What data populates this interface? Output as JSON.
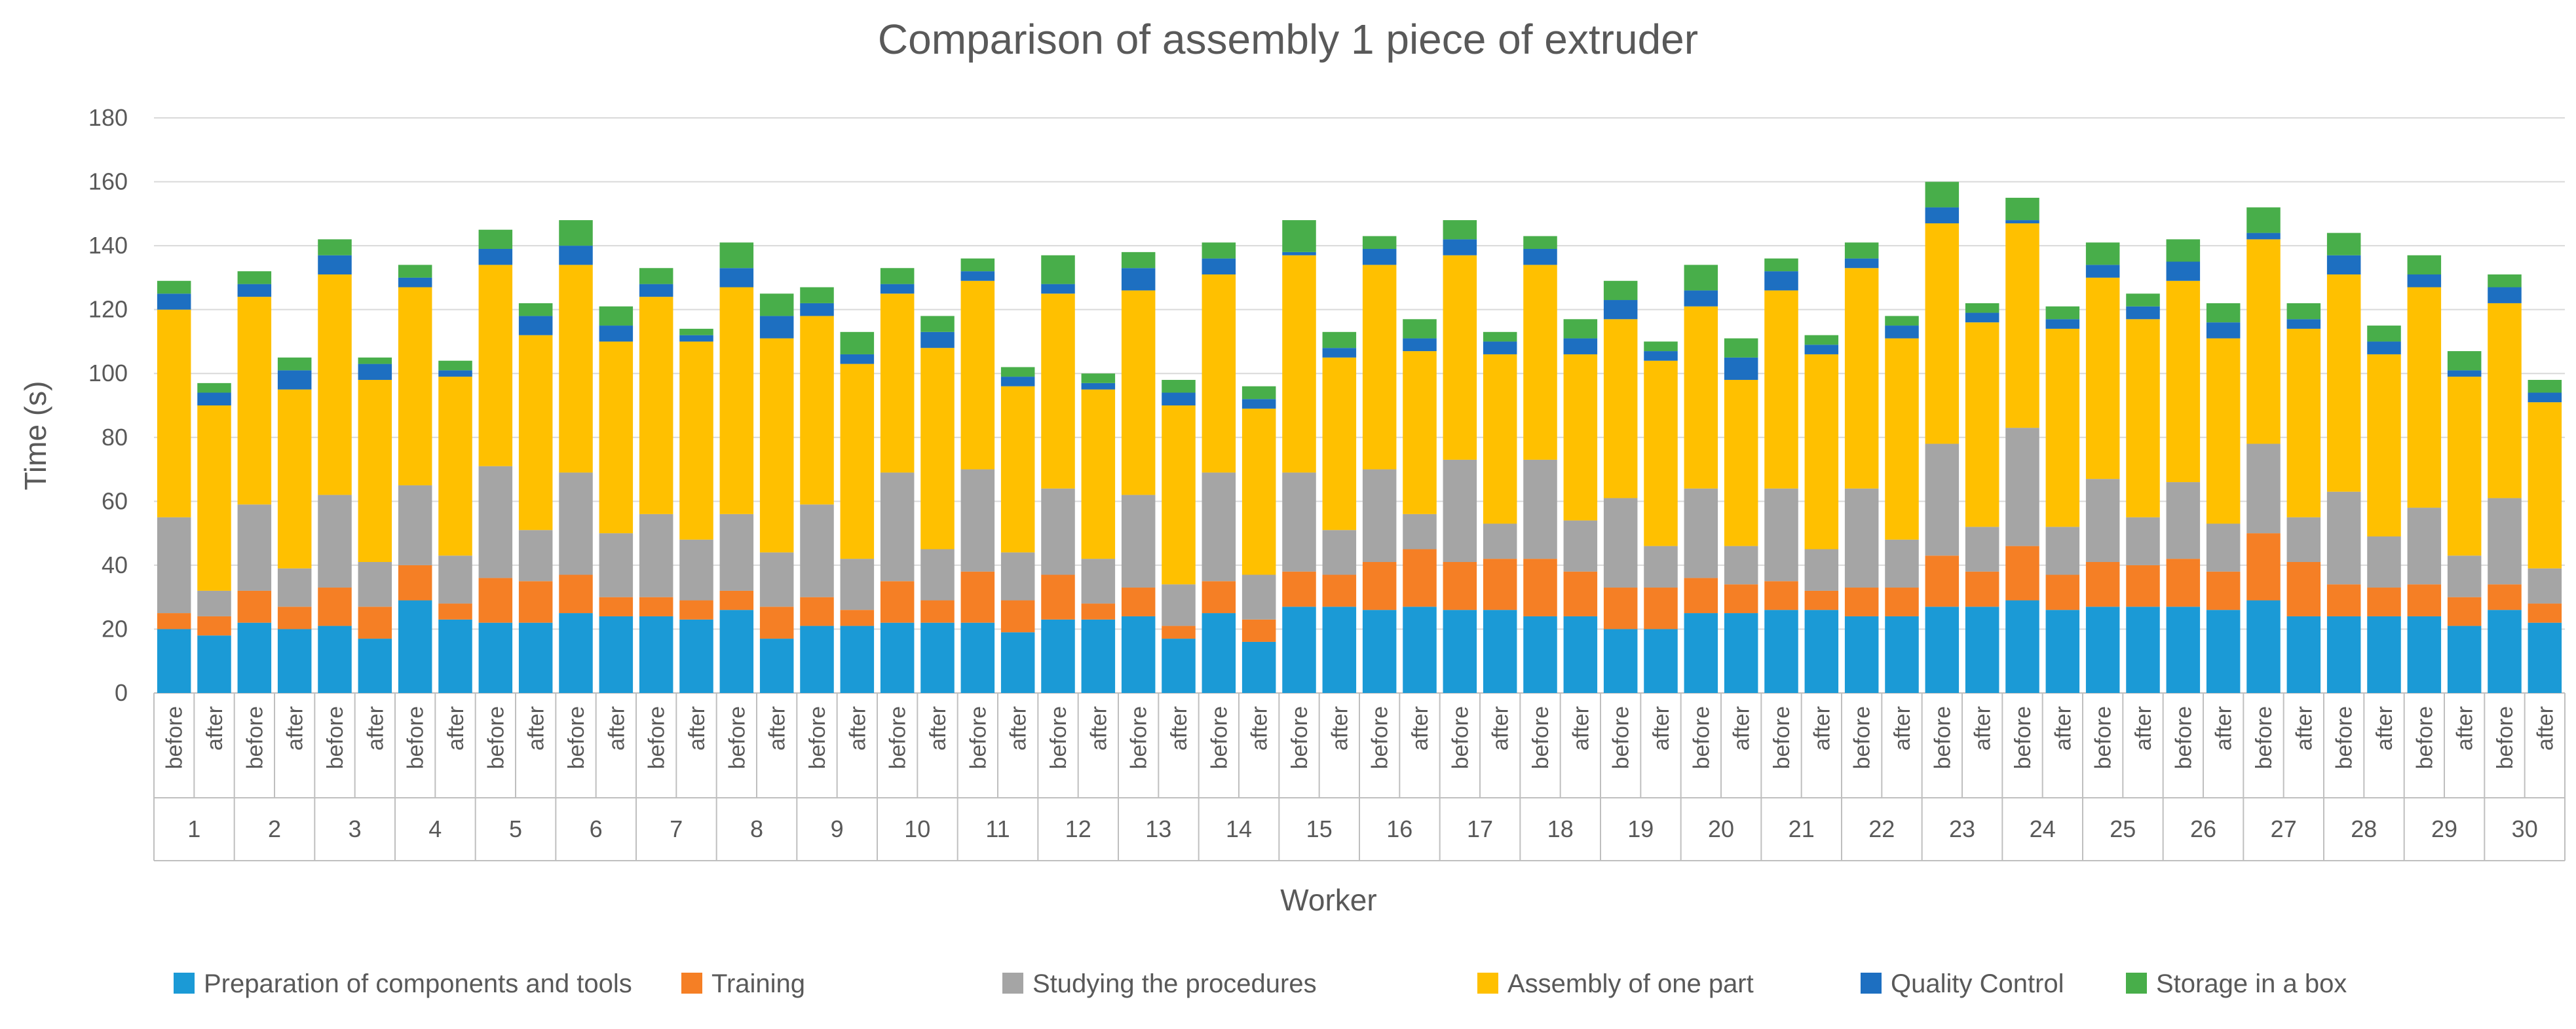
{
  "chart_data": {
    "type": "bar",
    "stacked": true,
    "title": "Comparison of assembly 1 piece of extruder",
    "xlabel": "Worker",
    "ylabel": "Time (s)",
    "ylim": [
      0,
      180
    ],
    "yticks": [
      0,
      20,
      40,
      60,
      80,
      100,
      120,
      140,
      160,
      180
    ],
    "conditions": [
      "before",
      "after"
    ],
    "workers": [
      "1",
      "2",
      "3",
      "4",
      "5",
      "6",
      "7",
      "8",
      "9",
      "10",
      "11",
      "12",
      "13",
      "14",
      "15",
      "16",
      "17",
      "18",
      "19",
      "20",
      "21",
      "22",
      "23",
      "24",
      "25",
      "26",
      "27",
      "28",
      "29",
      "30"
    ],
    "legend_position": "bottom",
    "series": [
      {
        "name": "Preparation of components and tools",
        "color": "#1b9ad6",
        "values": [
          20,
          18,
          22,
          20,
          21,
          17,
          29,
          23,
          22,
          22,
          25,
          24,
          24,
          23,
          26,
          17,
          21,
          21,
          22,
          22,
          22,
          19,
          23,
          23,
          24,
          17,
          25,
          16,
          27,
          27,
          26,
          27,
          26,
          26,
          24,
          24,
          20,
          20,
          25,
          25,
          26,
          26,
          24,
          24,
          27,
          27,
          29,
          26,
          27,
          27,
          27,
          26,
          29,
          24,
          24,
          24,
          24,
          21,
          26,
          22
        ]
      },
      {
        "name": "Training",
        "color": "#f57f25",
        "values": [
          5,
          6,
          10,
          7,
          12,
          10,
          11,
          5,
          14,
          13,
          12,
          6,
          6,
          6,
          6,
          10,
          9,
          5,
          13,
          7,
          16,
          10,
          14,
          5,
          9,
          4,
          10,
          7,
          11,
          10,
          15,
          18,
          15,
          16,
          18,
          14,
          13,
          13,
          11,
          9,
          9,
          6,
          9,
          9,
          16,
          11,
          17,
          11,
          14,
          13,
          15,
          12,
          21,
          17,
          10,
          9,
          10,
          9,
          8,
          6
        ]
      },
      {
        "name": "Studying the procedures",
        "color": "#a5a5a5",
        "values": [
          30,
          8,
          27,
          12,
          29,
          14,
          25,
          15,
          35,
          16,
          32,
          20,
          26,
          19,
          24,
          17,
          29,
          16,
          34,
          16,
          32,
          15,
          27,
          14,
          29,
          13,
          34,
          14,
          31,
          14,
          29,
          11,
          32,
          11,
          31,
          16,
          28,
          13,
          28,
          12,
          29,
          13,
          31,
          15,
          35,
          14,
          37,
          15,
          26,
          15,
          24,
          15,
          28,
          14,
          29,
          16,
          24,
          13,
          27,
          11
        ]
      },
      {
        "name": "Assembly of one part",
        "color": "#ffc000",
        "values": [
          65,
          58,
          65,
          56,
          69,
          57,
          62,
          56,
          63,
          61,
          65,
          60,
          68,
          62,
          71,
          67,
          59,
          61,
          56,
          63,
          59,
          52,
          61,
          53,
          64,
          56,
          62,
          52,
          68,
          54,
          64,
          51,
          64,
          53,
          61,
          52,
          56,
          58,
          57,
          52,
          62,
          61,
          69,
          63,
          69,
          64,
          64,
          62,
          63,
          62,
          63,
          58,
          64,
          59,
          68,
          57,
          69,
          56,
          61,
          52
        ]
      },
      {
        "name": "Quality Control",
        "color": "#1d6fc1",
        "values": [
          5,
          4,
          4,
          6,
          6,
          5,
          3,
          2,
          5,
          6,
          6,
          5,
          4,
          2,
          6,
          7,
          4,
          3,
          3,
          5,
          3,
          3,
          3,
          2,
          7,
          4,
          5,
          3,
          1,
          3,
          5,
          4,
          5,
          4,
          5,
          5,
          6,
          3,
          5,
          7,
          6,
          3,
          3,
          4,
          5,
          3,
          1,
          3,
          4,
          4,
          6,
          5,
          2,
          3,
          6,
          4,
          4,
          2,
          5,
          3
        ]
      },
      {
        "name": "Storage in a box",
        "color": "#48ae4a",
        "values": [
          4,
          3,
          4,
          4,
          5,
          2,
          4,
          3,
          6,
          4,
          8,
          6,
          5,
          2,
          8,
          7,
          5,
          7,
          5,
          5,
          4,
          3,
          9,
          3,
          5,
          4,
          5,
          4,
          10,
          5,
          4,
          6,
          6,
          3,
          4,
          6,
          6,
          3,
          8,
          6,
          4,
          3,
          5,
          3,
          8,
          3,
          7,
          4,
          7,
          4,
          7,
          6,
          8,
          5,
          7,
          5,
          6,
          6,
          4,
          4
        ]
      }
    ]
  }
}
